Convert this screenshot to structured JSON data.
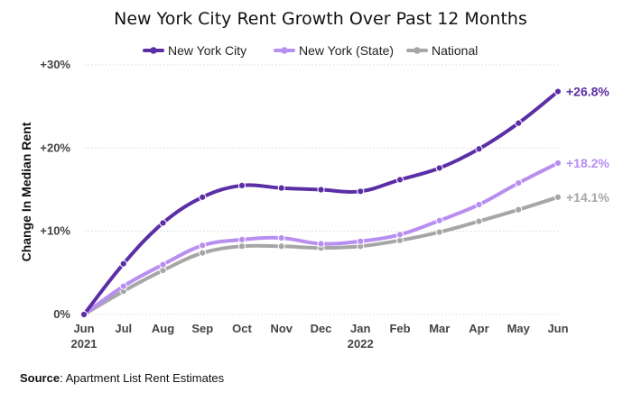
{
  "chart_data": {
    "type": "line",
    "title": "New York City Rent Growth Over Past 12 Months",
    "ylabel": "Change In Median Rent",
    "xlabel": "",
    "categories": [
      "Jun",
      "Jul",
      "Aug",
      "Sep",
      "Oct",
      "Nov",
      "Dec",
      "Jan",
      "Feb",
      "Mar",
      "Apr",
      "May",
      "Jun"
    ],
    "year_labels": [
      {
        "index": 0,
        "label": "2021"
      },
      {
        "index": 7,
        "label": "2022"
      }
    ],
    "ylim": [
      0,
      30
    ],
    "yticks": [
      {
        "value": 0,
        "label": "0%"
      },
      {
        "value": 10,
        "label": "+10%"
      },
      {
        "value": 20,
        "label": "+20%"
      },
      {
        "value": 30,
        "label": "+30%"
      }
    ],
    "grid": true,
    "legend_position": "top",
    "series": [
      {
        "name": "New York City",
        "color": "#5b2ea6",
        "values": [
          0,
          6.1,
          11.0,
          14.1,
          15.5,
          15.2,
          15.0,
          14.8,
          16.2,
          17.6,
          19.9,
          23.0,
          26.8
        ],
        "end_label": "+26.8%"
      },
      {
        "name": "New York (State)",
        "color": "#b88ef0",
        "values": [
          0,
          3.4,
          6.0,
          8.3,
          9.0,
          9.2,
          8.5,
          8.8,
          9.6,
          11.3,
          13.2,
          15.8,
          18.2
        ],
        "end_label": "+18.2%"
      },
      {
        "name": "National",
        "color": "#a6a6a6",
        "values": [
          0,
          2.8,
          5.3,
          7.4,
          8.2,
          8.2,
          8.0,
          8.2,
          8.9,
          9.9,
          11.2,
          12.6,
          14.1
        ],
        "end_label": "+14.1%"
      }
    ]
  },
  "source": {
    "label": "Source",
    "text": ": Apartment List Rent Estimates"
  }
}
